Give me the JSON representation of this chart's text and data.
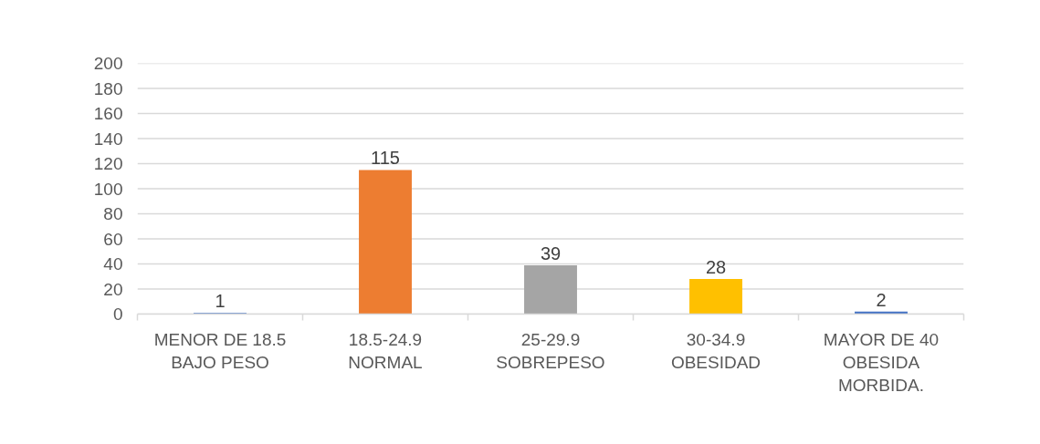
{
  "chart_data": {
    "type": "bar",
    "categories": [
      "MENOR DE 18.5 BAJO PESO",
      "18.5-24.9 NORMAL",
      "25-29.9 SOBREPESO",
      "30-34.9 OBESIDAD",
      "MAYOR DE 40 OBESIDA MORBIDA."
    ],
    "values": [
      1,
      115,
      39,
      28,
      2
    ],
    "colors": [
      "#4472c4",
      "#ed7d31",
      "#a5a5a5",
      "#ffc000",
      "#4472c4"
    ],
    "ylim": [
      0,
      200
    ],
    "yticks": [
      0,
      20,
      40,
      60,
      80,
      100,
      120,
      140,
      160,
      180,
      200
    ],
    "grid": "y",
    "data_labels": true
  }
}
